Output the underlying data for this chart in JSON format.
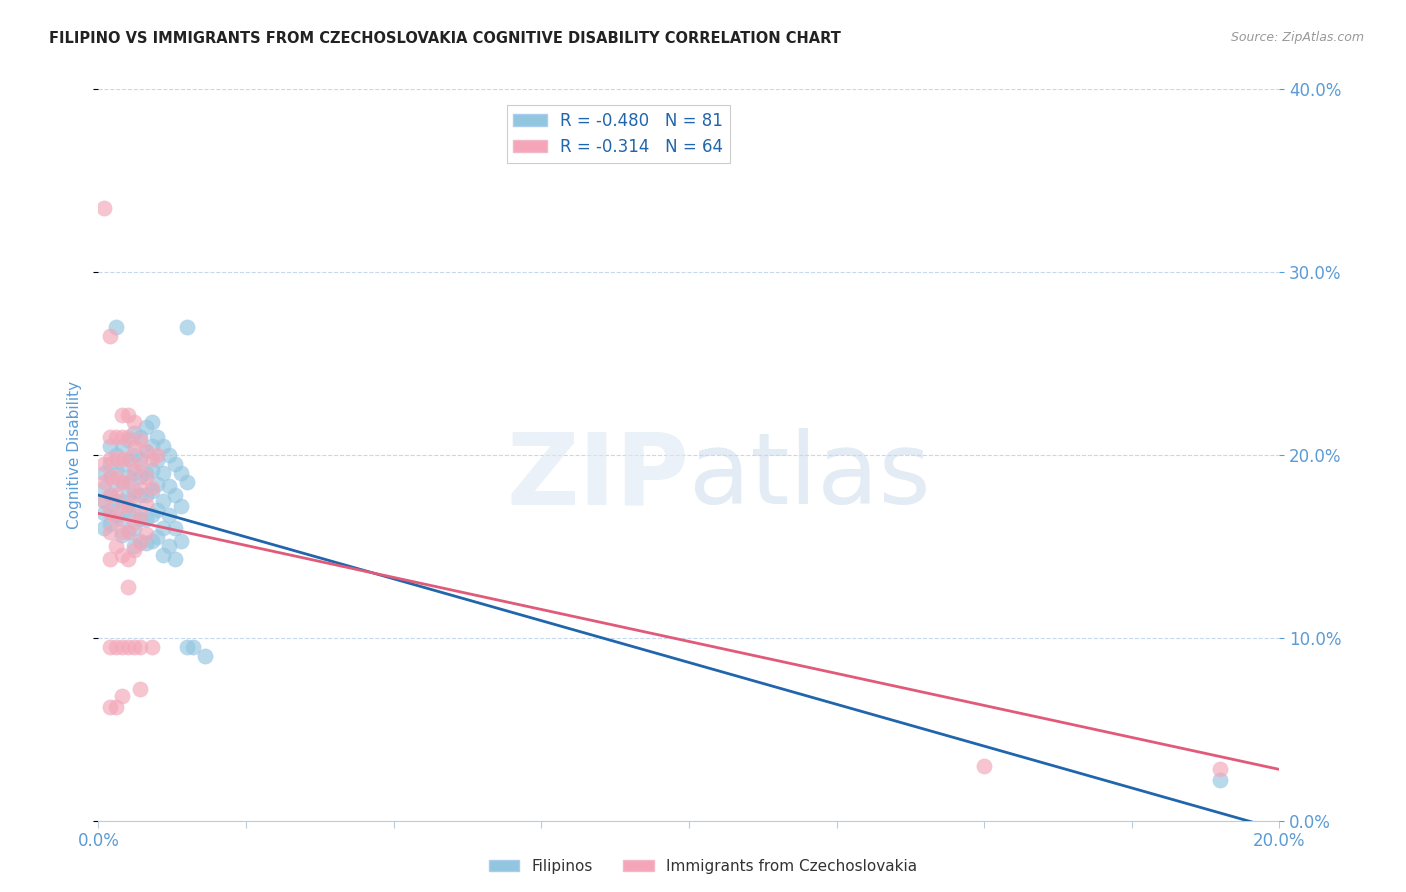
{
  "title": "FILIPINO VS IMMIGRANTS FROM CZECHOSLOVAKIA COGNITIVE DISABILITY CORRELATION CHART",
  "source": "Source: ZipAtlas.com",
  "ylabel": "Cognitive Disability",
  "xlim": [
    0,
    0.2
  ],
  "ylim": [
    0,
    0.4
  ],
  "xticks": [
    0.0,
    0.025,
    0.05,
    0.075,
    0.1,
    0.125,
    0.15,
    0.175,
    0.2
  ],
  "yticks": [
    0.0,
    0.1,
    0.2,
    0.3,
    0.4
  ],
  "filipino_color": "#92c5de",
  "czech_color": "#f4a6b8",
  "filipino_line_color": "#2166ac",
  "czech_line_color": "#e05a7a",
  "legend_text_color": "#2166ac",
  "axis_color": "#5b9bd5",
  "filipino_R": -0.48,
  "filipino_N": 81,
  "czech_R": -0.314,
  "czech_N": 64,
  "filipino_line": [
    0.0,
    0.178,
    0.2,
    -0.005
  ],
  "czech_line": [
    0.0,
    0.168,
    0.2,
    0.028
  ],
  "filipino_points": [
    [
      0.001,
      0.19
    ],
    [
      0.001,
      0.182
    ],
    [
      0.001,
      0.175
    ],
    [
      0.001,
      0.168
    ],
    [
      0.001,
      0.16
    ],
    [
      0.002,
      0.205
    ],
    [
      0.002,
      0.195
    ],
    [
      0.002,
      0.188
    ],
    [
      0.002,
      0.178
    ],
    [
      0.002,
      0.17
    ],
    [
      0.002,
      0.162
    ],
    [
      0.003,
      0.27
    ],
    [
      0.003,
      0.2
    ],
    [
      0.003,
      0.192
    ],
    [
      0.003,
      0.184
    ],
    [
      0.003,
      0.175
    ],
    [
      0.003,
      0.167
    ],
    [
      0.004,
      0.205
    ],
    [
      0.004,
      0.195
    ],
    [
      0.004,
      0.185
    ],
    [
      0.004,
      0.175
    ],
    [
      0.004,
      0.165
    ],
    [
      0.004,
      0.156
    ],
    [
      0.005,
      0.208
    ],
    [
      0.005,
      0.198
    ],
    [
      0.005,
      0.188
    ],
    [
      0.005,
      0.178
    ],
    [
      0.005,
      0.168
    ],
    [
      0.005,
      0.158
    ],
    [
      0.006,
      0.212
    ],
    [
      0.006,
      0.2
    ],
    [
      0.006,
      0.19
    ],
    [
      0.006,
      0.18
    ],
    [
      0.006,
      0.17
    ],
    [
      0.006,
      0.16
    ],
    [
      0.006,
      0.15
    ],
    [
      0.007,
      0.21
    ],
    [
      0.007,
      0.198
    ],
    [
      0.007,
      0.188
    ],
    [
      0.007,
      0.178
    ],
    [
      0.007,
      0.165
    ],
    [
      0.007,
      0.153
    ],
    [
      0.008,
      0.215
    ],
    [
      0.008,
      0.202
    ],
    [
      0.008,
      0.19
    ],
    [
      0.008,
      0.178
    ],
    [
      0.008,
      0.165
    ],
    [
      0.008,
      0.152
    ],
    [
      0.009,
      0.218
    ],
    [
      0.009,
      0.205
    ],
    [
      0.009,
      0.192
    ],
    [
      0.009,
      0.18
    ],
    [
      0.009,
      0.167
    ],
    [
      0.009,
      0.153
    ],
    [
      0.01,
      0.21
    ],
    [
      0.01,
      0.197
    ],
    [
      0.01,
      0.184
    ],
    [
      0.01,
      0.17
    ],
    [
      0.01,
      0.155
    ],
    [
      0.011,
      0.205
    ],
    [
      0.011,
      0.19
    ],
    [
      0.011,
      0.175
    ],
    [
      0.011,
      0.16
    ],
    [
      0.011,
      0.145
    ],
    [
      0.012,
      0.2
    ],
    [
      0.012,
      0.183
    ],
    [
      0.012,
      0.167
    ],
    [
      0.012,
      0.15
    ],
    [
      0.013,
      0.195
    ],
    [
      0.013,
      0.178
    ],
    [
      0.013,
      0.16
    ],
    [
      0.013,
      0.143
    ],
    [
      0.014,
      0.19
    ],
    [
      0.014,
      0.172
    ],
    [
      0.014,
      0.153
    ],
    [
      0.015,
      0.27
    ],
    [
      0.015,
      0.185
    ],
    [
      0.015,
      0.095
    ],
    [
      0.016,
      0.095
    ],
    [
      0.018,
      0.09
    ],
    [
      0.19,
      0.022
    ]
  ],
  "czech_points": [
    [
      0.001,
      0.335
    ],
    [
      0.001,
      0.195
    ],
    [
      0.001,
      0.185
    ],
    [
      0.001,
      0.175
    ],
    [
      0.002,
      0.265
    ],
    [
      0.002,
      0.21
    ],
    [
      0.002,
      0.198
    ],
    [
      0.002,
      0.188
    ],
    [
      0.002,
      0.178
    ],
    [
      0.002,
      0.168
    ],
    [
      0.002,
      0.158
    ],
    [
      0.002,
      0.143
    ],
    [
      0.002,
      0.095
    ],
    [
      0.002,
      0.062
    ],
    [
      0.003,
      0.21
    ],
    [
      0.003,
      0.198
    ],
    [
      0.003,
      0.188
    ],
    [
      0.003,
      0.178
    ],
    [
      0.003,
      0.165
    ],
    [
      0.003,
      0.15
    ],
    [
      0.003,
      0.095
    ],
    [
      0.003,
      0.062
    ],
    [
      0.004,
      0.222
    ],
    [
      0.004,
      0.21
    ],
    [
      0.004,
      0.198
    ],
    [
      0.004,
      0.185
    ],
    [
      0.004,
      0.172
    ],
    [
      0.004,
      0.158
    ],
    [
      0.004,
      0.145
    ],
    [
      0.004,
      0.095
    ],
    [
      0.004,
      0.068
    ],
    [
      0.005,
      0.222
    ],
    [
      0.005,
      0.21
    ],
    [
      0.005,
      0.198
    ],
    [
      0.005,
      0.185
    ],
    [
      0.005,
      0.172
    ],
    [
      0.005,
      0.158
    ],
    [
      0.005,
      0.143
    ],
    [
      0.005,
      0.128
    ],
    [
      0.005,
      0.095
    ],
    [
      0.006,
      0.218
    ],
    [
      0.006,
      0.205
    ],
    [
      0.006,
      0.192
    ],
    [
      0.006,
      0.178
    ],
    [
      0.006,
      0.163
    ],
    [
      0.006,
      0.148
    ],
    [
      0.006,
      0.095
    ],
    [
      0.007,
      0.208
    ],
    [
      0.007,
      0.195
    ],
    [
      0.007,
      0.182
    ],
    [
      0.007,
      0.167
    ],
    [
      0.007,
      0.152
    ],
    [
      0.007,
      0.095
    ],
    [
      0.007,
      0.072
    ],
    [
      0.008,
      0.202
    ],
    [
      0.008,
      0.188
    ],
    [
      0.008,
      0.173
    ],
    [
      0.008,
      0.157
    ],
    [
      0.009,
      0.198
    ],
    [
      0.009,
      0.182
    ],
    [
      0.009,
      0.095
    ],
    [
      0.01,
      0.2
    ],
    [
      0.15,
      0.03
    ],
    [
      0.19,
      0.028
    ]
  ]
}
